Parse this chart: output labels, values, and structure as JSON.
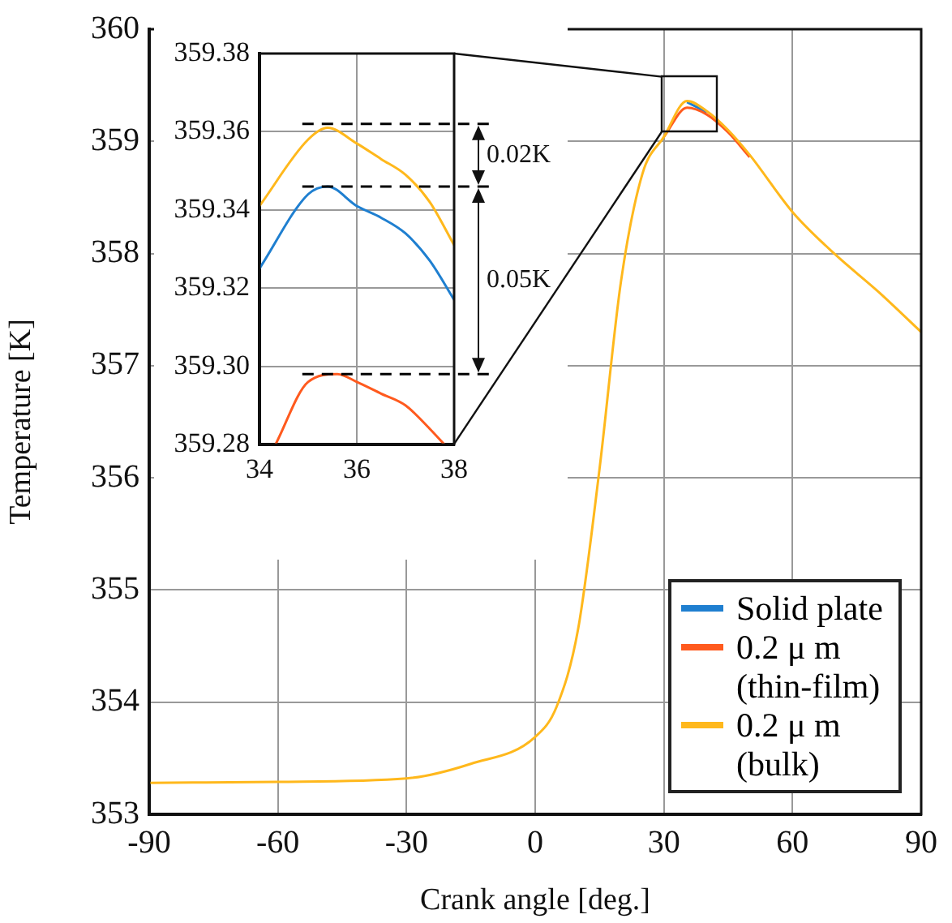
{
  "chart_data": [
    {
      "type": "line",
      "xlabel": "Crank angle [deg.]",
      "ylabel": "Temperature [K]",
      "x": [
        -90,
        -60,
        -30,
        -15,
        0,
        5,
        10,
        15,
        20,
        25,
        30,
        35.4,
        40,
        45,
        50,
        60,
        70,
        80,
        90
      ],
      "series": [
        {
          "name": "Solid plate",
          "color": "#1f7fd0",
          "values": [
            null,
            null,
            null,
            null,
            null,
            null,
            null,
            null,
            null,
            null,
            null,
            359.35,
            359.26,
            null,
            null,
            null,
            null,
            null,
            null
          ]
        },
        {
          "name": "0.2 μ m (thin-film)",
          "color": "#ff5a1e",
          "values": [
            null,
            null,
            null,
            null,
            null,
            null,
            null,
            null,
            null,
            null,
            359.04,
            359.3,
            359.24,
            359.08,
            358.86,
            null,
            null,
            null,
            null
          ]
        },
        {
          "name": "0.2 μ m (bulk)",
          "color": "#ffb81c",
          "values": [
            353.28,
            353.29,
            353.32,
            353.45,
            353.69,
            353.96,
            354.65,
            356.08,
            357.75,
            358.71,
            359.04,
            359.36,
            359.27,
            359.1,
            358.88,
            358.37,
            357.99,
            357.66,
            357.3
          ]
        }
      ],
      "xlim": [
        -90,
        90
      ],
      "xticks": [
        -90,
        -60,
        -30,
        0,
        30,
        60,
        90
      ],
      "ylim": [
        353,
        360
      ],
      "yticks": [
        353,
        354,
        355,
        356,
        357,
        358,
        359,
        360
      ],
      "grid": true,
      "legend": "bottom right",
      "line_style": "solid"
    },
    {
      "type": "line",
      "x": [
        34,
        35,
        35.4,
        36,
        36.5,
        37,
        37.5,
        38
      ],
      "series": [
        {
          "color": "#1f7fd0",
          "values": [
            359.325,
            359.344,
            359.346,
            359.341,
            359.338,
            359.334,
            359.327,
            359.317
          ]
        },
        {
          "color": "#ff5a1e",
          "x": [
            34.33,
            35,
            35.6,
            36,
            36.5,
            37,
            37.5,
            37.8
          ],
          "values": [
            359.28,
            359.296,
            359.298,
            359.296,
            359.293,
            359.29,
            359.284,
            359.28
          ]
        },
        {
          "color": "#ffb81c",
          "values": [
            359.341,
            359.358,
            359.361,
            359.357,
            359.353,
            359.349,
            359.342,
            359.331
          ]
        }
      ],
      "xlim": [
        34,
        38
      ],
      "xticks": [
        34,
        36,
        38
      ],
      "ylim": [
        359.28,
        359.38
      ],
      "yticks": [
        359.28,
        {
          "value": 359.3,
          "label": "359.30"
        },
        359.32,
        359.34,
        359.36,
        359.38
      ],
      "grid": true,
      "marker": "none",
      "line_style": "solid",
      "ref_lines": [
        {
          "axis": "y",
          "value": 359.362,
          "line_style": "dashed",
          "color": "#000000"
        },
        {
          "axis": "y",
          "value": 359.346,
          "line_style": "dashed",
          "color": "#000000"
        },
        {
          "axis": "y",
          "value": 359.298,
          "line_style": "dashed",
          "color": "#000000"
        }
      ],
      "annotations": [
        "0.02K",
        "0.05K"
      ]
    }
  ]
}
